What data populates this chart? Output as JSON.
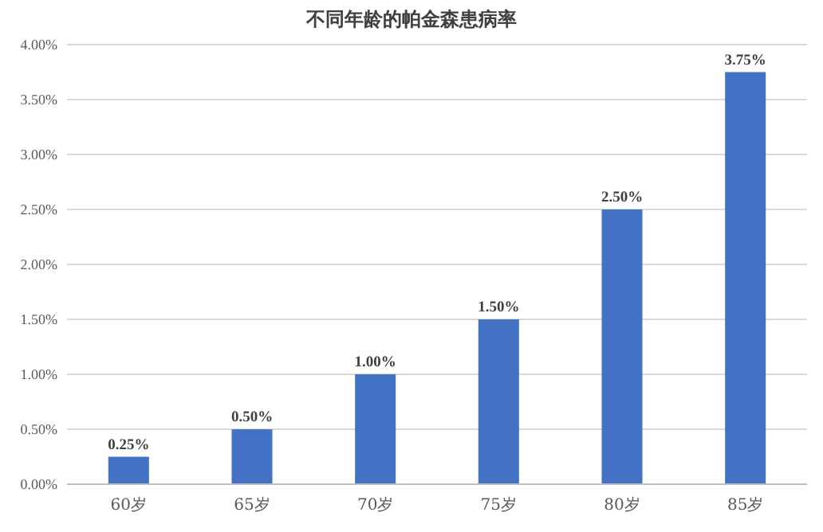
{
  "chart_data": {
    "type": "bar",
    "title": "不同年龄的帕金森患病率",
    "categories": [
      "60岁",
      "65岁",
      "70岁",
      "75岁",
      "80岁",
      "85岁"
    ],
    "values": [
      0.25,
      0.5,
      1,
      1.5,
      2.5,
      3.75
    ],
    "value_labels": [
      "0.25%",
      "0.50%",
      "1.00%",
      "1.50%",
      "2.50%",
      "3.75%"
    ],
    "color": "#4472c4",
    "ylim": [
      0,
      4
    ],
    "yticks": [
      {
        "value": 0,
        "label": "0.00%"
      },
      {
        "value": 0.5,
        "label": "0.50%"
      },
      {
        "value": 1,
        "label": "1.00%"
      },
      {
        "value": 1.5,
        "label": "1.50%"
      },
      {
        "value": 2,
        "label": "2.00%"
      },
      {
        "value": 2.5,
        "label": "2.50%"
      },
      {
        "value": 3,
        "label": "3.00%"
      },
      {
        "value": 3.5,
        "label": "3.50%"
      },
      {
        "value": 4,
        "label": "4.00%"
      }
    ],
    "grid": "y"
  }
}
